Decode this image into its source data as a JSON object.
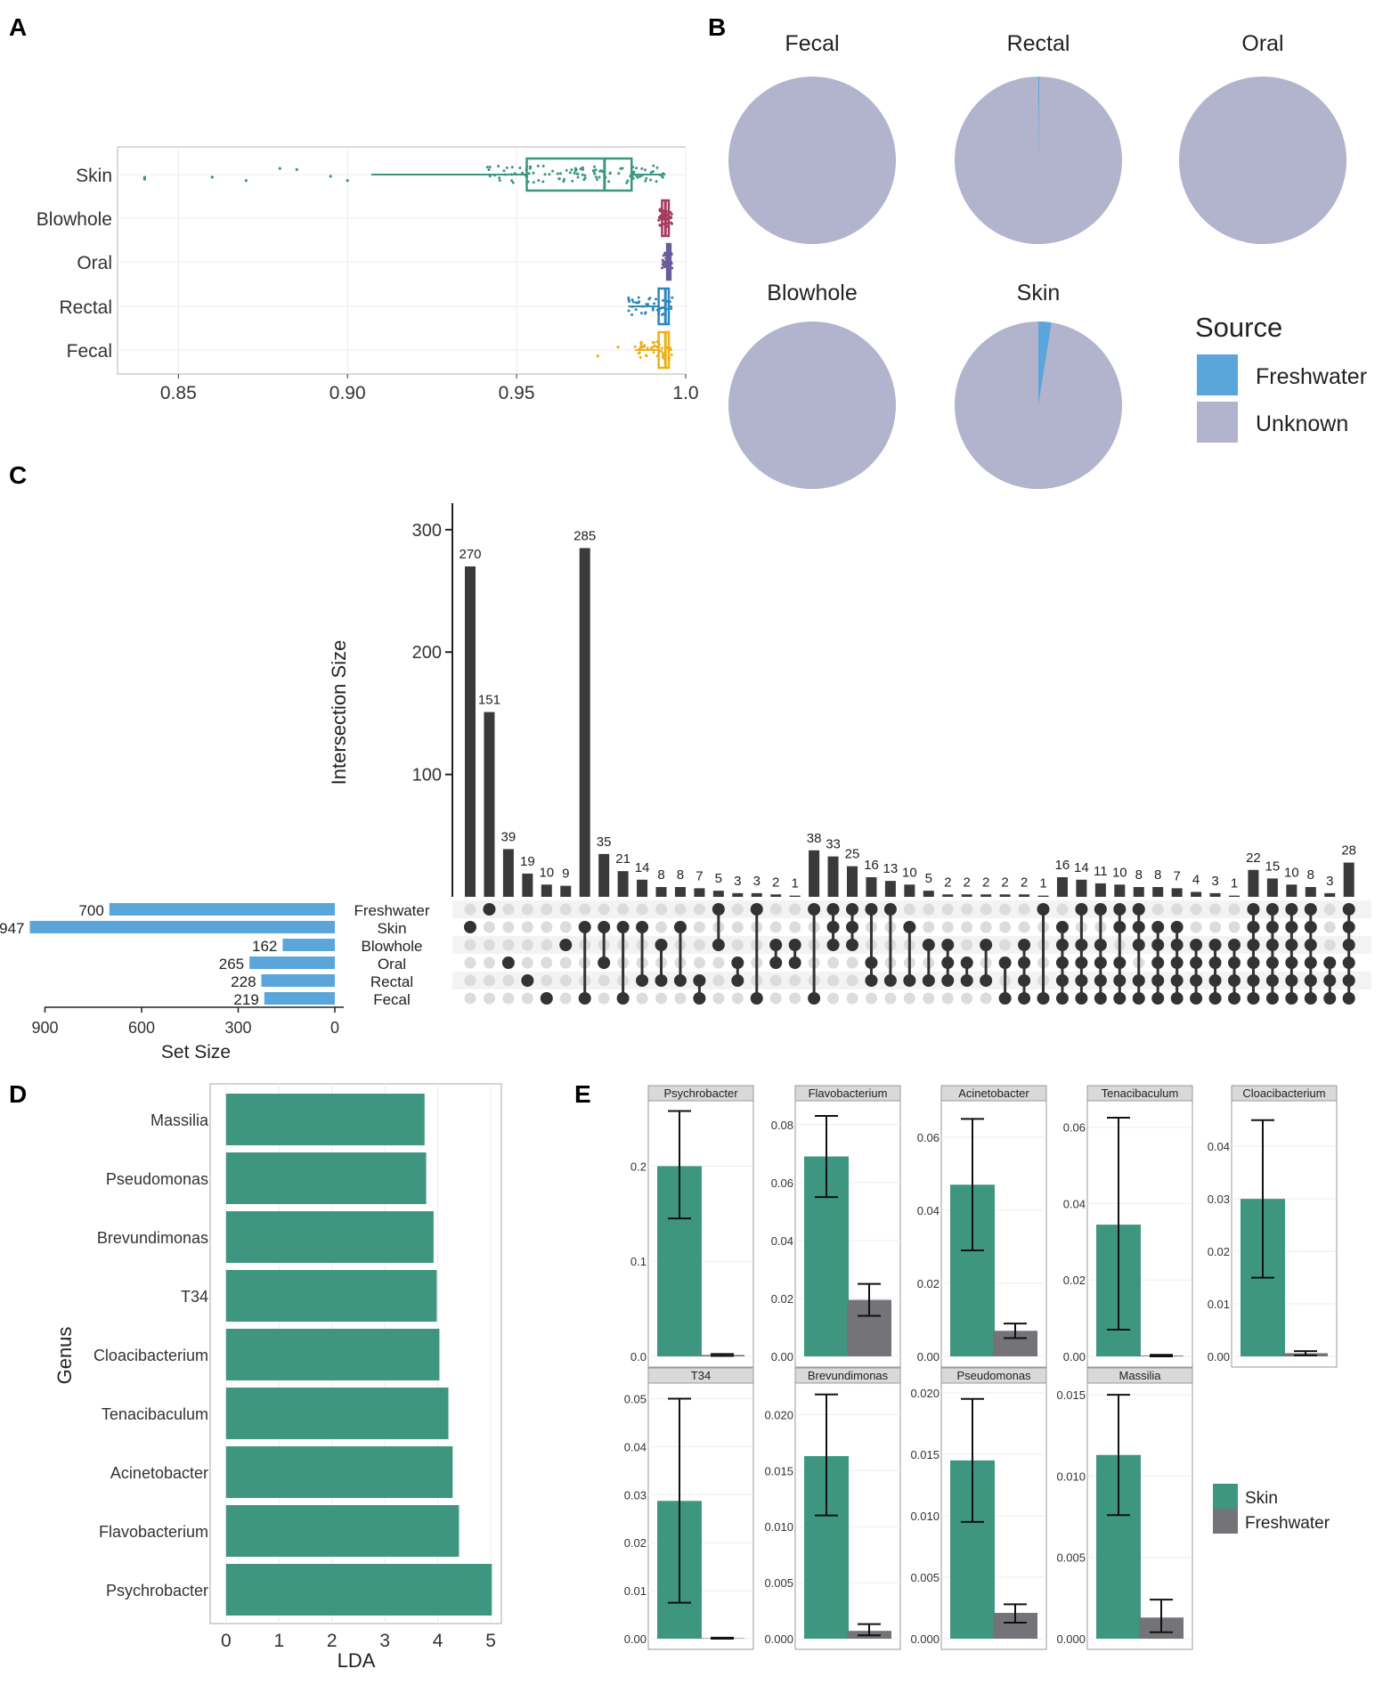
{
  "panel_labels": [
    "A",
    "B",
    "C",
    "D",
    "E"
  ],
  "colors": {
    "skin": "#3a9680",
    "blowhole": "#a5395f",
    "oral": "#6a5d9a",
    "rectal": "#2e86b8",
    "fecal": "#eab118",
    "freshwater_pie": "#5aa5da",
    "unknown_pie": "#b2b3cd",
    "upset_bar": "#3a3a3a",
    "set_bar": "#5aa5da",
    "lefse": "#3e9680",
    "freshwater_bar": "#737378"
  },
  "chart_data": [
    {
      "panel": "A",
      "type": "box",
      "title": "",
      "categories": [
        "Skin",
        "Blowhole",
        "Oral",
        "Rectal",
        "Fecal"
      ],
      "xlim": [
        0.832,
        1.0
      ],
      "xticks": [
        "0.85",
        "0.90",
        "0.95",
        "1.0"
      ],
      "xtick_values": [
        0.85,
        0.9,
        0.95,
        1.0
      ],
      "boxes": [
        {
          "group": "Skin",
          "min": 0.907,
          "q1": 0.953,
          "median": 0.976,
          "q3": 0.984,
          "max": 0.994
        },
        {
          "group": "Blowhole",
          "min": 0.992,
          "q1": 0.993,
          "median": 0.994,
          "q3": 0.995,
          "max": 0.996
        },
        {
          "group": "Oral",
          "min": 0.993,
          "q1": 0.9945,
          "median": 0.995,
          "q3": 0.9955,
          "max": 0.996
        },
        {
          "group": "Rectal",
          "min": 0.983,
          "q1": 0.992,
          "median": 0.994,
          "q3": 0.995,
          "max": 0.996
        },
        {
          "group": "Fecal",
          "min": 0.985,
          "q1": 0.992,
          "median": 0.994,
          "q3": 0.995,
          "max": 0.996
        }
      ],
      "outliers": [
        {
          "group": "Skin",
          "values": [
            0.84,
            0.84,
            0.86,
            0.87,
            0.88,
            0.885,
            0.895,
            0.9
          ]
        },
        {
          "group": "Fecal",
          "values": [
            0.974,
            0.98
          ]
        }
      ]
    },
    {
      "panel": "B",
      "type": "pie",
      "legend_title": "Source",
      "legend": [
        "Freshwater",
        "Unknown"
      ],
      "pies": [
        {
          "label": "Fecal",
          "freshwater": 0.0,
          "unknown": 1.0
        },
        {
          "label": "Rectal",
          "freshwater": 0.002,
          "unknown": 0.998
        },
        {
          "label": "Oral",
          "freshwater": 0.0,
          "unknown": 1.0
        },
        {
          "label": "Blowhole",
          "freshwater": 0.0,
          "unknown": 1.0
        },
        {
          "label": "Skin",
          "freshwater": 0.025,
          "unknown": 0.975
        }
      ]
    },
    {
      "panel": "C",
      "type": "upset",
      "ylabel": "Intersection Size",
      "yticks": [
        100,
        200,
        300
      ],
      "ylim": [
        0,
        320
      ],
      "set_xlabel": "Set Size",
      "set_xticks": [
        "900",
        "600",
        "300",
        "0"
      ],
      "sets": [
        "Freshwater",
        "Skin",
        "Blowhole",
        "Oral",
        "Rectal",
        "Fecal"
      ],
      "set_sizes": [
        700,
        947,
        162,
        265,
        228,
        219
      ],
      "intersections": [
        {
          "v": 270,
          "sets": [
            1
          ]
        },
        {
          "v": 151,
          "sets": [
            0
          ]
        },
        {
          "v": 39,
          "sets": [
            3
          ]
        },
        {
          "v": 19,
          "sets": [
            4
          ]
        },
        {
          "v": 10,
          "sets": [
            5
          ]
        },
        {
          "v": 9,
          "sets": [
            2
          ]
        },
        {
          "v": 285,
          "sets": [
            1,
            5
          ]
        },
        {
          "v": 35,
          "sets": [
            1,
            3
          ]
        },
        {
          "v": 21,
          "sets": [
            1,
            5
          ]
        },
        {
          "v": 14,
          "sets": [
            1,
            4
          ]
        },
        {
          "v": 8,
          "sets": [
            2,
            4
          ]
        },
        {
          "v": 8,
          "sets": [
            1,
            4
          ]
        },
        {
          "v": 7,
          "sets": [
            4,
            5
          ]
        },
        {
          "v": 5,
          "sets": [
            0,
            2
          ]
        },
        {
          "v": 3,
          "sets": [
            3,
            4
          ]
        },
        {
          "v": 3,
          "sets": [
            0,
            5
          ]
        },
        {
          "v": 2,
          "sets": [
            2,
            3
          ]
        },
        {
          "v": 1,
          "sets": [
            2,
            3
          ]
        },
        {
          "v": 38,
          "sets": [
            0,
            5
          ]
        },
        {
          "v": 33,
          "sets": [
            0,
            1,
            2
          ]
        },
        {
          "v": 25,
          "sets": [
            0,
            1,
            2
          ]
        },
        {
          "v": 16,
          "sets": [
            0,
            3,
            4
          ]
        },
        {
          "v": 13,
          "sets": [
            0,
            4
          ]
        },
        {
          "v": 10,
          "sets": [
            1,
            4
          ]
        },
        {
          "v": 5,
          "sets": [
            2,
            4
          ]
        },
        {
          "v": 2,
          "sets": [
            2,
            3,
            4
          ]
        },
        {
          "v": 2,
          "sets": [
            3,
            4
          ]
        },
        {
          "v": 2,
          "sets": [
            2,
            4
          ]
        },
        {
          "v": 2,
          "sets": [
            3,
            5
          ]
        },
        {
          "v": 2,
          "sets": [
            2,
            3,
            4,
            5
          ]
        },
        {
          "v": 1,
          "sets": [
            0,
            5
          ]
        },
        {
          "v": 16,
          "sets": [
            1,
            2,
            3,
            4,
            5
          ]
        },
        {
          "v": 14,
          "sets": [
            0,
            2,
            3,
            4,
            5
          ]
        },
        {
          "v": 11,
          "sets": [
            0,
            2,
            3,
            4,
            5
          ]
        },
        {
          "v": 10,
          "sets": [
            0,
            1,
            3,
            4,
            5
          ]
        },
        {
          "v": 8,
          "sets": [
            0,
            1,
            2,
            4,
            5
          ]
        },
        {
          "v": 8,
          "sets": [
            1,
            2,
            3,
            4,
            5
          ]
        },
        {
          "v": 7,
          "sets": [
            1,
            2,
            3,
            4,
            5
          ]
        },
        {
          "v": 4,
          "sets": [
            2,
            3,
            4,
            5
          ]
        },
        {
          "v": 3,
          "sets": [
            2,
            3,
            4,
            5
          ]
        },
        {
          "v": 1,
          "sets": [
            2,
            3,
            4,
            5
          ]
        },
        {
          "v": 22,
          "sets": [
            0,
            1,
            2,
            3,
            4,
            5
          ]
        },
        {
          "v": 15,
          "sets": [
            0,
            1,
            2,
            3,
            4,
            5
          ]
        },
        {
          "v": 10,
          "sets": [
            0,
            1,
            2,
            3,
            4,
            5
          ]
        },
        {
          "v": 8,
          "sets": [
            0,
            1,
            2,
            3,
            4,
            5
          ]
        },
        {
          "v": 3,
          "sets": [
            3,
            4,
            5
          ]
        },
        {
          "v": 28,
          "sets": [
            0,
            1,
            2,
            3,
            4,
            5
          ]
        }
      ]
    },
    {
      "panel": "D",
      "type": "bar",
      "orientation": "horizontal",
      "xlabel": "LDA",
      "ylabel": "Genus",
      "xlim": [
        -0.3,
        5.2
      ],
      "xticks": [
        "0",
        "1",
        "2",
        "3",
        "4",
        "5"
      ],
      "categories": [
        "Massilia",
        "Pseudomonas",
        "Brevundimonas",
        "T34",
        "Cloacibacterium",
        "Tenacibaculum",
        "Acinetobacter",
        "Flavobacterium",
        "Psychrobacter"
      ],
      "values": [
        3.75,
        3.78,
        3.92,
        3.98,
        4.03,
        4.2,
        4.28,
        4.4,
        5.02
      ]
    },
    {
      "panel": "E",
      "type": "bar",
      "legend": [
        "Skin",
        "Freshwater"
      ],
      "facets": [
        {
          "title": "Psychrobacter",
          "ymax": 0.265,
          "ticks": [
            "0.0",
            "0.1",
            "0.2"
          ],
          "tickv": [
            0,
            0.1,
            0.2
          ],
          "skin": {
            "v": 0.2,
            "lo": 0.145,
            "hi": 0.258
          },
          "fw": {
            "v": 0.0015,
            "lo": 0.0005,
            "hi": 0.0025
          }
        },
        {
          "title": "Flavobacterium",
          "ymax": 0.087,
          "ticks": [
            "0.00",
            "0.02",
            "0.04",
            "0.06",
            "0.08"
          ],
          "tickv": [
            0,
            0.02,
            0.04,
            0.06,
            0.08
          ],
          "skin": {
            "v": 0.069,
            "lo": 0.055,
            "hi": 0.083
          },
          "fw": {
            "v": 0.0195,
            "lo": 0.014,
            "hi": 0.025
          }
        },
        {
          "title": "Acinetobacter",
          "ymax": 0.069,
          "ticks": [
            "0.00",
            "0.02",
            "0.04",
            "0.06"
          ],
          "tickv": [
            0,
            0.02,
            0.04,
            0.06
          ],
          "skin": {
            "v": 0.047,
            "lo": 0.029,
            "hi": 0.065
          },
          "fw": {
            "v": 0.007,
            "lo": 0.005,
            "hi": 0.009
          }
        },
        {
          "title": "Tenacibaculum",
          "ymax": 0.066,
          "ticks": [
            "0.00",
            "0.02",
            "0.04",
            "0.06"
          ],
          "tickv": [
            0,
            0.02,
            0.04,
            0.06
          ],
          "skin": {
            "v": 0.0345,
            "lo": 0.007,
            "hi": 0.0625
          },
          "fw": {
            "v": 0.0002,
            "lo": 0.0,
            "hi": 0.0004
          }
        },
        {
          "title": "Cloacibacterium",
          "ymax": 0.048,
          "ticks": [
            "0.00",
            "0.01",
            "0.02",
            "0.03",
            "0.04"
          ],
          "tickv": [
            0,
            0.01,
            0.02,
            0.03,
            0.04
          ],
          "skin": {
            "v": 0.03,
            "lo": 0.015,
            "hi": 0.045
          },
          "fw": {
            "v": 0.0006,
            "lo": 0.0002,
            "hi": 0.001
          }
        },
        {
          "title": "T34",
          "ymax": 0.0525,
          "ticks": [
            "0.00",
            "0.01",
            "0.02",
            "0.03",
            "0.04",
            "0.05"
          ],
          "tickv": [
            0,
            0.01,
            0.02,
            0.03,
            0.04,
            0.05
          ],
          "skin": {
            "v": 0.0287,
            "lo": 0.0075,
            "hi": 0.05
          },
          "fw": {
            "v": 0.0001,
            "lo": 0.0,
            "hi": 0.0002
          }
        },
        {
          "title": "Brevundimonas",
          "ymax": 0.0225,
          "ticks": [
            "0.000",
            "0.005",
            "0.010",
            "0.015",
            "0.020"
          ],
          "tickv": [
            0,
            0.005,
            0.01,
            0.015,
            0.02
          ],
          "skin": {
            "v": 0.0163,
            "lo": 0.011,
            "hi": 0.0218
          },
          "fw": {
            "v": 0.0007,
            "lo": 0.0003,
            "hi": 0.0013
          }
        },
        {
          "title": "Pseudomonas",
          "ymax": 0.0205,
          "ticks": [
            "0.000",
            "0.005",
            "0.010",
            "0.015",
            "0.020"
          ],
          "tickv": [
            0,
            0.005,
            0.01,
            0.015,
            0.02
          ],
          "skin": {
            "v": 0.0145,
            "lo": 0.0095,
            "hi": 0.0195
          },
          "fw": {
            "v": 0.0021,
            "lo": 0.0013,
            "hi": 0.0028
          }
        },
        {
          "title": "Massilia",
          "ymax": 0.0155,
          "ticks": [
            "0.000",
            "0.005",
            "0.010",
            "0.015"
          ],
          "tickv": [
            0,
            0.005,
            0.01,
            0.015
          ],
          "skin": {
            "v": 0.0113,
            "lo": 0.0076,
            "hi": 0.015
          },
          "fw": {
            "v": 0.0013,
            "lo": 0.0004,
            "hi": 0.0024
          }
        }
      ]
    }
  ]
}
